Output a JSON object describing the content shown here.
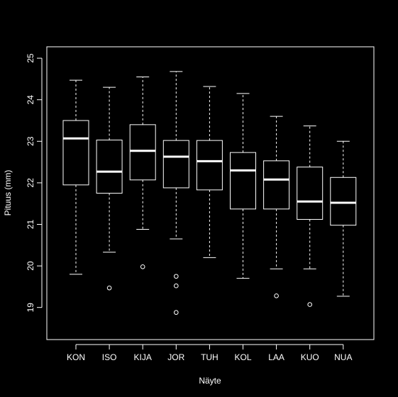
{
  "chart_data": {
    "type": "boxplot",
    "xlabel": "Näyte",
    "ylabel": "Pituus (mm)",
    "ylim": [
      18.3,
      25.2
    ],
    "yticks": [
      19,
      20,
      21,
      22,
      23,
      24,
      25
    ],
    "categories": [
      "KON",
      "ISO",
      "KIJA",
      "JOR",
      "TUH",
      "KOL",
      "LAA",
      "KUO",
      "NUA"
    ],
    "boxes": [
      {
        "name": "KON",
        "whisker_low": 19.8,
        "q1": 21.95,
        "median": 23.07,
        "q3": 23.5,
        "whisker_high": 24.47,
        "outliers": []
      },
      {
        "name": "ISO",
        "whisker_low": 20.33,
        "q1": 21.75,
        "median": 22.27,
        "q3": 23.03,
        "whisker_high": 24.3,
        "outliers": [
          19.47
        ]
      },
      {
        "name": "KIJA",
        "whisker_low": 20.88,
        "q1": 22.07,
        "median": 22.77,
        "q3": 23.4,
        "whisker_high": 24.55,
        "outliers": [
          19.98
        ]
      },
      {
        "name": "JOR",
        "whisker_low": 20.65,
        "q1": 21.88,
        "median": 22.63,
        "q3": 23.02,
        "whisker_high": 24.68,
        "outliers": [
          19.75,
          19.52,
          18.88
        ]
      },
      {
        "name": "TUH",
        "whisker_low": 20.2,
        "q1": 21.83,
        "median": 22.52,
        "q3": 23.02,
        "whisker_high": 24.32,
        "outliers": []
      },
      {
        "name": "KOL",
        "whisker_low": 19.7,
        "q1": 21.37,
        "median": 22.3,
        "q3": 22.73,
        "whisker_high": 24.15,
        "outliers": []
      },
      {
        "name": "LAA",
        "whisker_low": 19.93,
        "q1": 21.37,
        "median": 22.08,
        "q3": 22.53,
        "whisker_high": 23.6,
        "outliers": [
          19.28
        ]
      },
      {
        "name": "KUO",
        "whisker_low": 19.93,
        "q1": 21.12,
        "median": 21.55,
        "q3": 22.38,
        "whisker_high": 23.37,
        "outliers": [
          19.07
        ]
      },
      {
        "name": "NUA",
        "whisker_low": 19.27,
        "q1": 20.98,
        "median": 21.52,
        "q3": 22.13,
        "whisker_high": 23.0,
        "outliers": []
      }
    ],
    "grid": false,
    "legend": "none",
    "colors": {
      "background": "#000000",
      "foreground": "#ffffff"
    }
  }
}
